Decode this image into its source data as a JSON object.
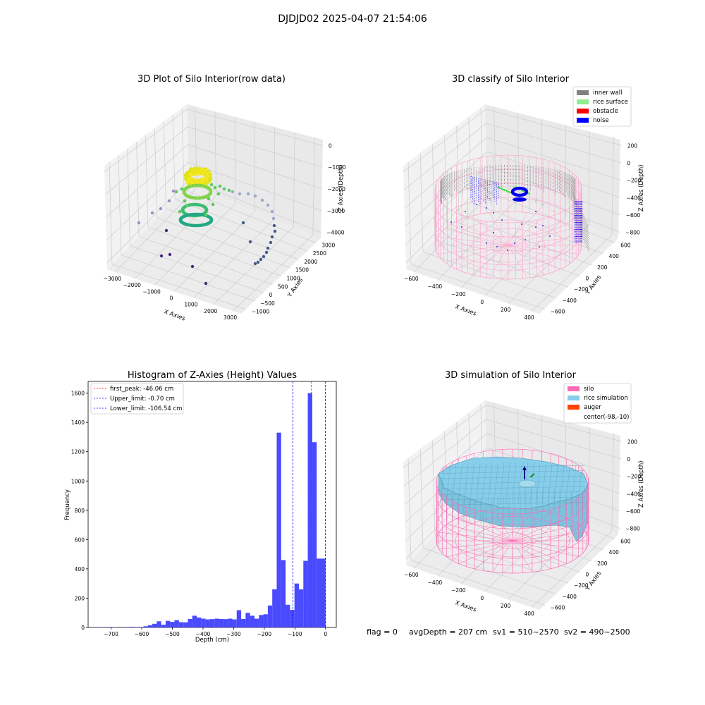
{
  "figure": {
    "suptitle": "DJDJD02 2025-04-07 21:54:06",
    "footer": {
      "flag": "flag = 0",
      "avg_depth": "avgDepth = 207 cm",
      "sv1": "sv1 = 510~2570",
      "sv2": "sv2 = 490~2500"
    }
  },
  "colors": {
    "inner_wall": "#808080",
    "rice_surface": "#90ee90",
    "obstacle": "#ff0000",
    "noise": "#0000ff",
    "silo": "#ff69b4",
    "rice_simulation": "#87ceeb",
    "auger": "#ff4500",
    "histogram_bar": "#4a4aff",
    "first_peak_line": "#ff0000",
    "limit_line": "#0000ff"
  },
  "chart_data": [
    {
      "id": "raw",
      "type": "scatter",
      "title": "3D Plot of Silo Interior(row data)",
      "xlabel": "X Axies",
      "ylabel": "Y Axies",
      "zlabel": "Z Axies (Depth)",
      "x_ticks": [
        "−3000",
        "−2000",
        "−1000",
        "0",
        "1000",
        "2000",
        "3000"
      ],
      "y_ticks": [
        "−1000",
        "−500",
        "0",
        "500",
        "1000",
        "1500",
        "2000",
        "2500",
        "3000"
      ],
      "z_ticks": [
        "0",
        "−1000",
        "−2000",
        "−3000",
        "−4000"
      ],
      "colormap": "viridis (by depth)",
      "grid": true
    },
    {
      "id": "classify",
      "type": "scatter",
      "title": "3D classify of Silo Interior",
      "xlabel": "X Axies",
      "ylabel": "Y Axies",
      "zlabel": "Z Axies (Depth)",
      "x_ticks": [
        "−600",
        "−400",
        "−200",
        "0",
        "200",
        "400"
      ],
      "y_ticks": [
        "−600",
        "−400",
        "−200",
        "0",
        "200",
        "400",
        "600"
      ],
      "z_ticks": [
        "200",
        "0",
        "−200",
        "−400",
        "−600",
        "−800"
      ],
      "legend": [
        "inner wall",
        "rice surface",
        "obstacle",
        "noise"
      ],
      "legend_position": "top-right",
      "grid": true
    },
    {
      "id": "hist",
      "type": "bar",
      "title": "Histogram of Z-Axies (Height) Values",
      "xlabel": "Depth (cm)",
      "ylabel": "Frequency",
      "xlim": [
        -775,
        35
      ],
      "ylim": [
        0,
        1680
      ],
      "x_ticks": [
        "−700",
        "−600",
        "−500",
        "−400",
        "−300",
        "−200",
        "−100",
        "0"
      ],
      "y_ticks": [
        "0",
        "200",
        "400",
        "600",
        "800",
        "1000",
        "1200",
        "1400",
        "1600"
      ],
      "bin_width": 14.5,
      "bins": [
        [
          -754,
          3
        ],
        [
          -739.5,
          2
        ],
        [
          -725,
          0
        ],
        [
          -710.5,
          3
        ],
        [
          -696,
          2
        ],
        [
          -681.5,
          0
        ],
        [
          -667,
          0
        ],
        [
          -652.5,
          3
        ],
        [
          -638,
          4
        ],
        [
          -623.5,
          3
        ],
        [
          -609,
          3
        ],
        [
          -594.5,
          8
        ],
        [
          -580,
          15
        ],
        [
          -565.5,
          25
        ],
        [
          -551,
          42
        ],
        [
          -536.5,
          18
        ],
        [
          -522,
          45
        ],
        [
          -507.5,
          38
        ],
        [
          -493,
          50
        ],
        [
          -478.5,
          36
        ],
        [
          -464,
          35
        ],
        [
          -449.5,
          58
        ],
        [
          -435,
          80
        ],
        [
          -420.5,
          68
        ],
        [
          -406,
          60
        ],
        [
          -391.5,
          55
        ],
        [
          -377,
          57
        ],
        [
          -362.5,
          60
        ],
        [
          -348,
          58
        ],
        [
          -333.5,
          57
        ],
        [
          -319,
          60
        ],
        [
          -304.5,
          55
        ],
        [
          -290,
          118
        ],
        [
          -275.5,
          58
        ],
        [
          -261,
          100
        ],
        [
          -246.5,
          80
        ],
        [
          -232,
          60
        ],
        [
          -217.5,
          85
        ],
        [
          -203,
          90
        ],
        [
          -188.5,
          150
        ],
        [
          -174,
          260
        ],
        [
          -159.5,
          1330
        ],
        [
          -145,
          460
        ],
        [
          -130.5,
          155
        ],
        [
          -116,
          120
        ],
        [
          -101.5,
          300
        ],
        [
          -87,
          260
        ],
        [
          -72.5,
          455
        ],
        [
          -58,
          1600
        ],
        [
          -43.5,
          1265
        ],
        [
          -29,
          470
        ],
        [
          -14.5,
          470
        ]
      ],
      "lines": [
        {
          "label": "first_peak: -46.06 cm",
          "value": -46.06,
          "color": "#ff0000"
        },
        {
          "label": "Upper_limit: -0.70 cm",
          "value": -0.7,
          "color": "#0000ff"
        },
        {
          "label": "Lower_limit: -106.54 cm",
          "value": -106.54,
          "color": "#0000ff"
        }
      ],
      "legend_position": "top-left"
    },
    {
      "id": "sim",
      "type": "surface",
      "title": "3D simulation of Silo Interior",
      "xlabel": "X Axies",
      "ylabel": "Y Axies",
      "zlabel": "Z Axies (Depth)",
      "x_ticks": [
        "−600",
        "−400",
        "−200",
        "0",
        "200",
        "400"
      ],
      "y_ticks": [
        "−600",
        "−400",
        "−200",
        "0",
        "200",
        "400",
        "600"
      ],
      "z_ticks": [
        "200",
        "0",
        "−200",
        "−400",
        "−600",
        "−800"
      ],
      "legend": [
        "silo",
        "rice simulation",
        "auger",
        "center(-98,-10)"
      ],
      "legend_position": "top-right",
      "grid": true
    }
  ]
}
